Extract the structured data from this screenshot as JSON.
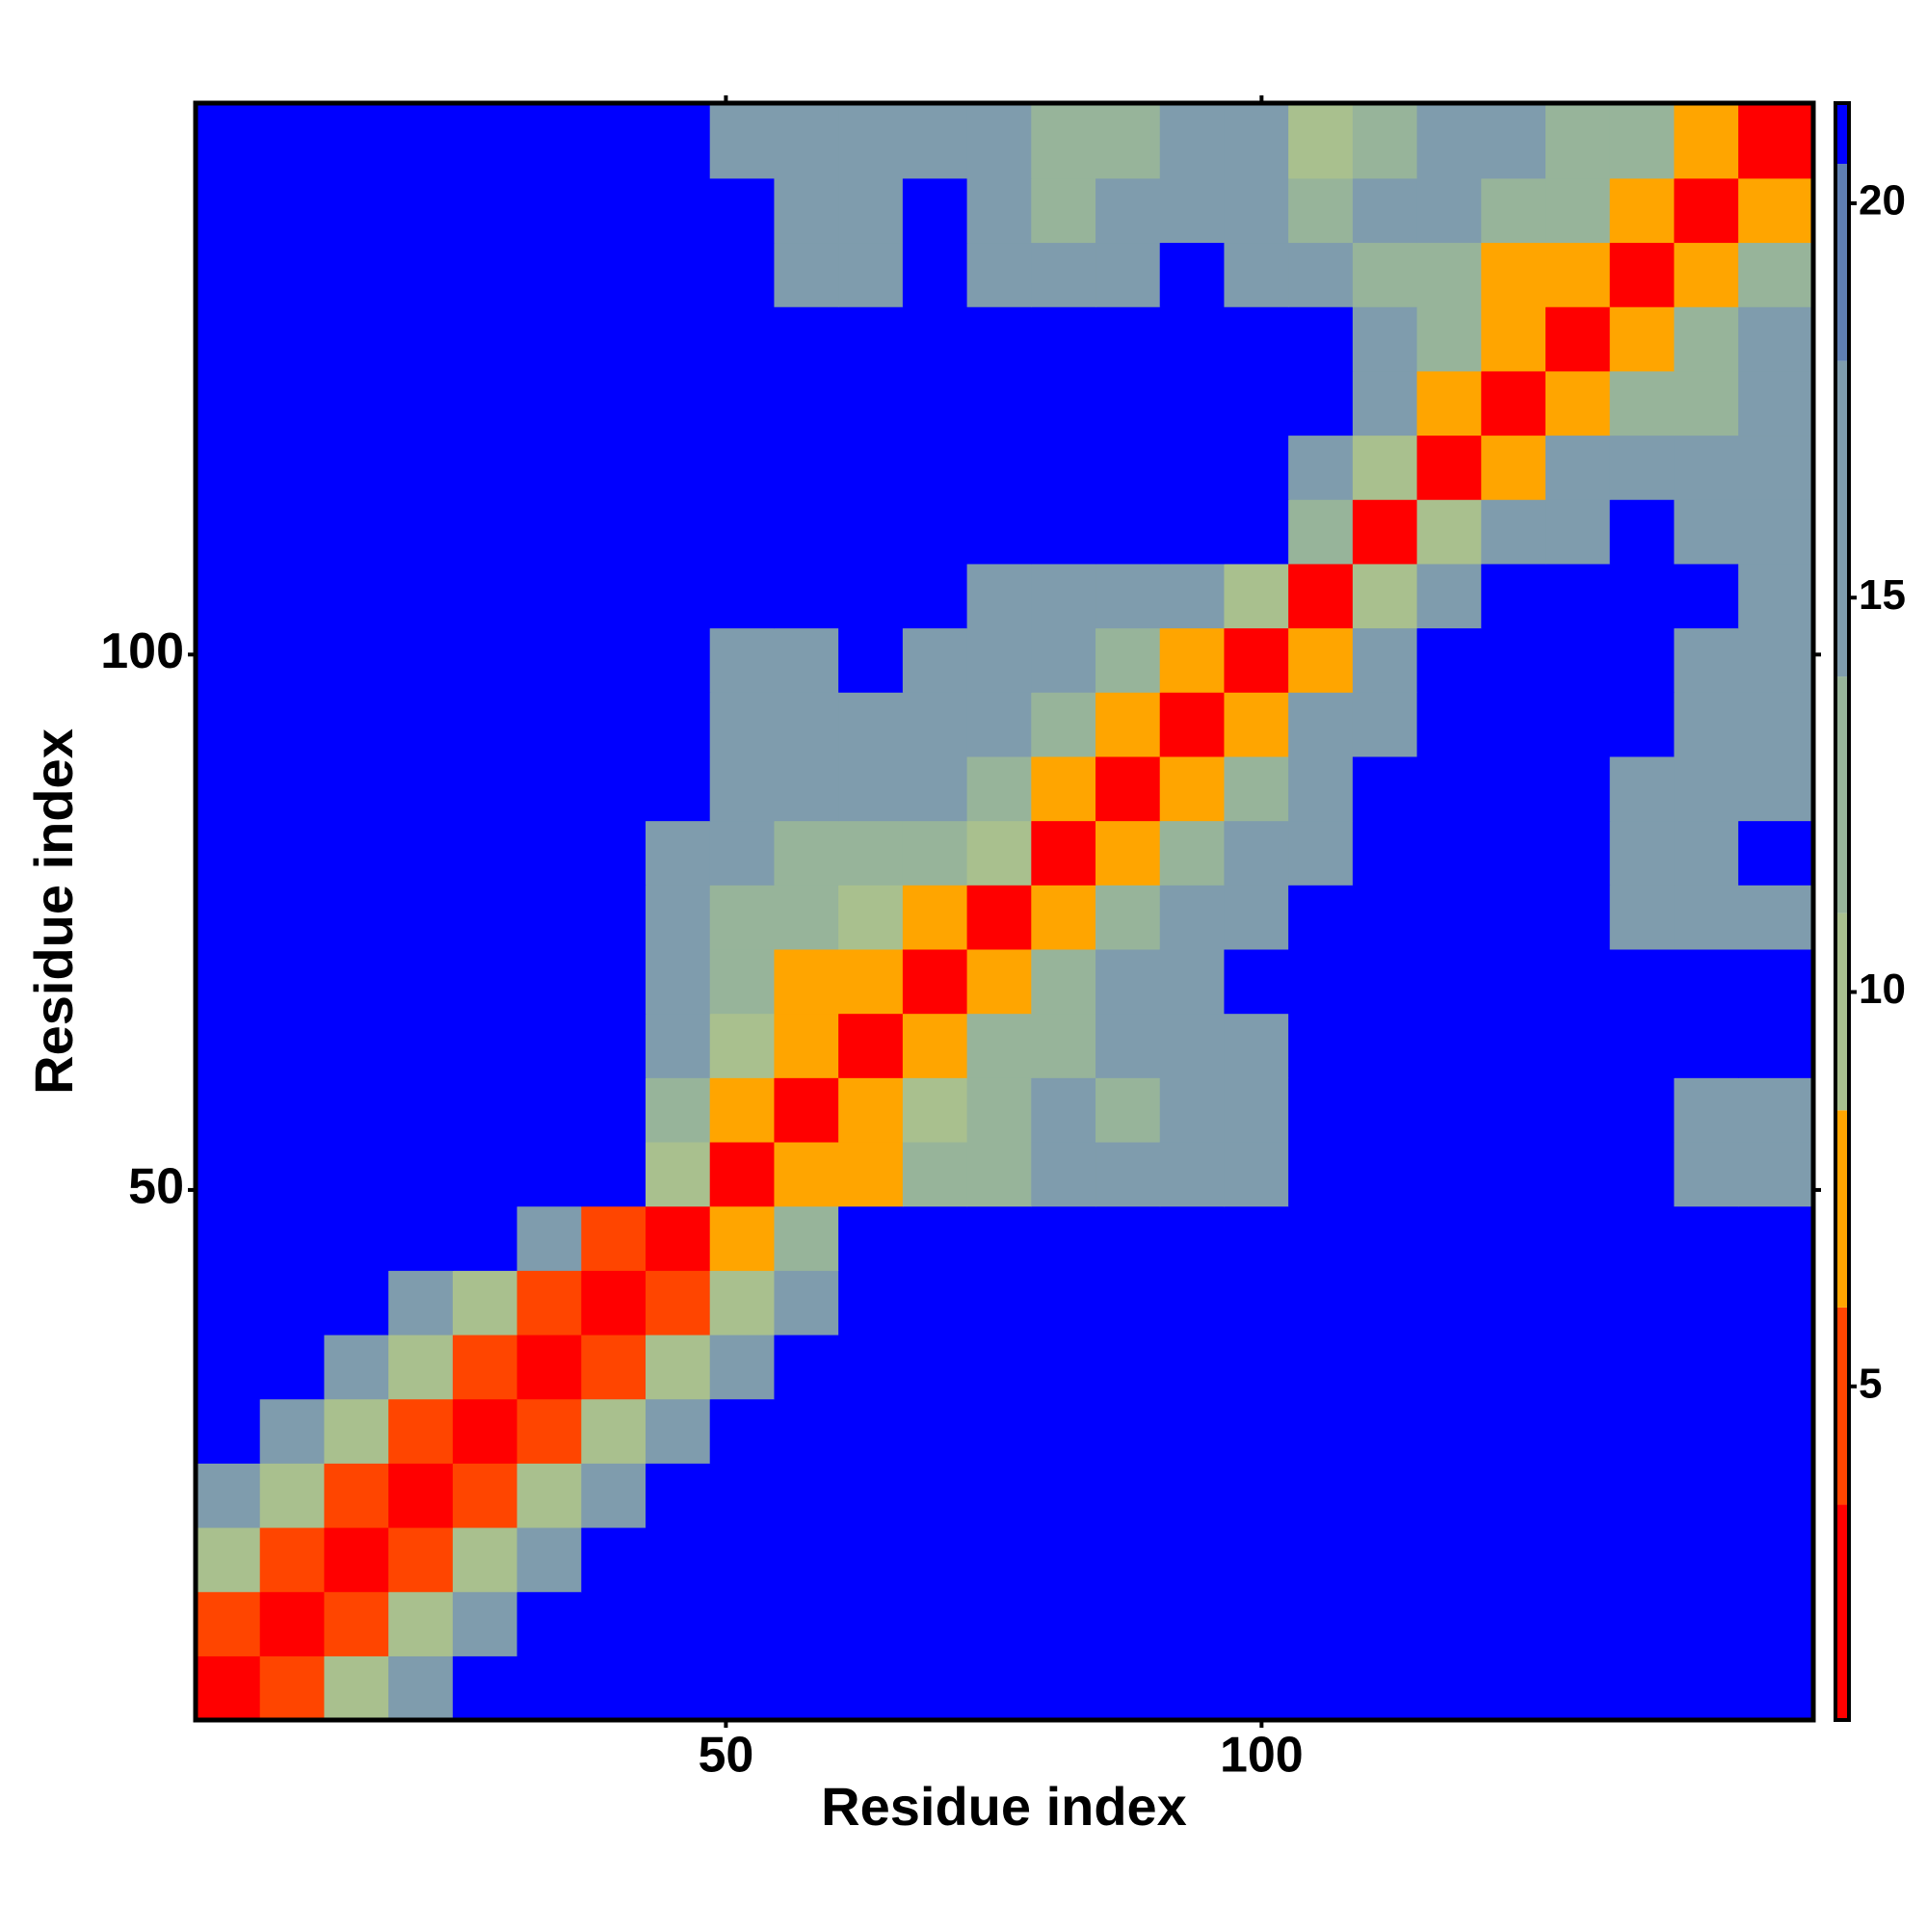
{
  "chart_data": {
    "type": "heatmap",
    "xlabel": "Residue index",
    "ylabel": "Residue index",
    "xlim": [
      0.5,
      151.5
    ],
    "ylim": [
      0.5,
      151.5
    ],
    "xticks": [
      50,
      100
    ],
    "yticks": [
      50,
      100
    ],
    "zlim": [
      0.77,
      21.27
    ],
    "colorbar_ticks": [
      5,
      10,
      15,
      20
    ],
    "colormap": [
      {
        "max": 3.5,
        "color": "#ff0000"
      },
      {
        "max": 6,
        "color": "#ff4500"
      },
      {
        "max": 8.5,
        "color": "#ffa500"
      },
      {
        "max": 11,
        "color": "#a9c08e"
      },
      {
        "max": 14,
        "color": "#97b49a"
      },
      {
        "max": 18,
        "color": "#7f9cad"
      },
      {
        "max": 20.5,
        "color": "#5f7fb3"
      },
      {
        "max": 21.27,
        "color": "#0000ff"
      }
    ],
    "bins": [
      0.5,
      6.5,
      12.5,
      18.5,
      24.5,
      30.5,
      36.5,
      42.5,
      48.5,
      54.5,
      60.5,
      66.5,
      72.5,
      78.5,
      84.5,
      90.5,
      96.5,
      102.5,
      108.5,
      114.5,
      120.5,
      126.5,
      132.5,
      138.5,
      144.5,
      151.5
    ],
    "z": [
      [
        2,
        6,
        11,
        15,
        21,
        21,
        21,
        21,
        21,
        21,
        21,
        21,
        21,
        21,
        21,
        21,
        21,
        21,
        21,
        21,
        21,
        21,
        21,
        21,
        21
      ],
      [
        6,
        2,
        6,
        11,
        15,
        21,
        21,
        21,
        21,
        21,
        21,
        21,
        21,
        21,
        21,
        21,
        21,
        21,
        21,
        21,
        21,
        21,
        21,
        21,
        21
      ],
      [
        11,
        6,
        2,
        6,
        11,
        15,
        21,
        21,
        21,
        21,
        21,
        21,
        21,
        21,
        21,
        21,
        21,
        21,
        21,
        21,
        21,
        21,
        21,
        21,
        21
      ],
      [
        15,
        11,
        6,
        2,
        6,
        11,
        15,
        21,
        21,
        21,
        21,
        21,
        21,
        21,
        21,
        21,
        21,
        21,
        21,
        21,
        21,
        21,
        21,
        21,
        21
      ],
      [
        21,
        15,
        11,
        6,
        2,
        6,
        11,
        15,
        21,
        21,
        21,
        21,
        21,
        21,
        21,
        21,
        21,
        21,
        21,
        21,
        21,
        21,
        21,
        21,
        21
      ],
      [
        21,
        21,
        15,
        11,
        6,
        2,
        6,
        11,
        15,
        21,
        21,
        21,
        21,
        21,
        21,
        21,
        21,
        21,
        21,
        21,
        21,
        21,
        21,
        21,
        21
      ],
      [
        21,
        21,
        21,
        15,
        11,
        6,
        2,
        6,
        11,
        15,
        21,
        21,
        21,
        21,
        21,
        21,
        21,
        21,
        21,
        21,
        21,
        21,
        21,
        21,
        21
      ],
      [
        21,
        21,
        21,
        21,
        21,
        15,
        6,
        2,
        8,
        14,
        21,
        21,
        21,
        21,
        21,
        21,
        21,
        21,
        21,
        21,
        21,
        21,
        21,
        21,
        21
      ],
      [
        21,
        21,
        21,
        21,
        21,
        21,
        21,
        9,
        2,
        7,
        8,
        12,
        14,
        16,
        15,
        16,
        17,
        21,
        21,
        21,
        21,
        21,
        21,
        17,
        18
      ],
      [
        21,
        21,
        21,
        21,
        21,
        21,
        21,
        14,
        7,
        2,
        7,
        11,
        13,
        15,
        14,
        16,
        17,
        21,
        21,
        21,
        21,
        21,
        21,
        16,
        17
      ],
      [
        21,
        21,
        21,
        21,
        21,
        21,
        21,
        15,
        9,
        7,
        2,
        7,
        12,
        13,
        15,
        16,
        18,
        21,
        21,
        21,
        21,
        21,
        21,
        21,
        21
      ],
      [
        21,
        21,
        21,
        21,
        21,
        21,
        21,
        15,
        12,
        8,
        7,
        2,
        7,
        14,
        16,
        17,
        21,
        21,
        21,
        21,
        21,
        21,
        21,
        21,
        21
      ],
      [
        21,
        21,
        21,
        21,
        21,
        21,
        21,
        16,
        13,
        12,
        9,
        7,
        2,
        8,
        13,
        16,
        17,
        21,
        21,
        21,
        21,
        21,
        16,
        15,
        17
      ],
      [
        21,
        21,
        21,
        21,
        21,
        21,
        21,
        17,
        15,
        14,
        14,
        13,
        9,
        2,
        8,
        14,
        16,
        18,
        21,
        21,
        21,
        21,
        16,
        16,
        21
      ],
      [
        21,
        21,
        21,
        21,
        21,
        21,
        21,
        21,
        15,
        15,
        16,
        15,
        14,
        8,
        2,
        7,
        13,
        16,
        21,
        21,
        21,
        21,
        17,
        15,
        16
      ],
      [
        21,
        21,
        21,
        21,
        21,
        21,
        21,
        21,
        16,
        15,
        17,
        16,
        16,
        13,
        7,
        2,
        8,
        15,
        17,
        21,
        21,
        21,
        21,
        16,
        17
      ],
      [
        21,
        21,
        21,
        21,
        21,
        21,
        21,
        21,
        17,
        16,
        21,
        17,
        15,
        15,
        14,
        8,
        2,
        8,
        16,
        21,
        21,
        21,
        21,
        17,
        16
      ],
      [
        21,
        21,
        21,
        21,
        21,
        21,
        21,
        21,
        21,
        21,
        21,
        21,
        17,
        16,
        17,
        15,
        9,
        2,
        9,
        15,
        21,
        21,
        21,
        21,
        16
      ],
      [
        21,
        21,
        21,
        21,
        21,
        21,
        21,
        21,
        21,
        21,
        21,
        21,
        21,
        21,
        21,
        21,
        21,
        14,
        2,
        9,
        15,
        17,
        21,
        17,
        16
      ],
      [
        21,
        21,
        21,
        21,
        21,
        21,
        21,
        21,
        21,
        21,
        21,
        21,
        21,
        21,
        21,
        21,
        21,
        16,
        9,
        2,
        8,
        15,
        17,
        16,
        17
      ],
      [
        21,
        21,
        21,
        21,
        21,
        21,
        21,
        21,
        21,
        21,
        21,
        21,
        21,
        21,
        21,
        21,
        21,
        21,
        15,
        8,
        2,
        7,
        12,
        14,
        15
      ],
      [
        21,
        21,
        21,
        21,
        21,
        21,
        21,
        21,
        21,
        21,
        21,
        21,
        21,
        21,
        21,
        21,
        21,
        21,
        16,
        14,
        7,
        2,
        7,
        13,
        16
      ],
      [
        21,
        21,
        21,
        21,
        21,
        21,
        21,
        21,
        21,
        17,
        16,
        21,
        16,
        15,
        16,
        21,
        16,
        15,
        14,
        12,
        8,
        7,
        2,
        8,
        13
      ],
      [
        21,
        21,
        21,
        21,
        21,
        21,
        21,
        21,
        21,
        16,
        17,
        21,
        15,
        14,
        16,
        16,
        16,
        13,
        15,
        15,
        12,
        13,
        8,
        2,
        8
      ],
      [
        21,
        21,
        21,
        21,
        21,
        21,
        21,
        21,
        17,
        16,
        15,
        16,
        17,
        14,
        12,
        15,
        16,
        9,
        14,
        16,
        15,
        14,
        12,
        8,
        2
      ]
    ]
  }
}
